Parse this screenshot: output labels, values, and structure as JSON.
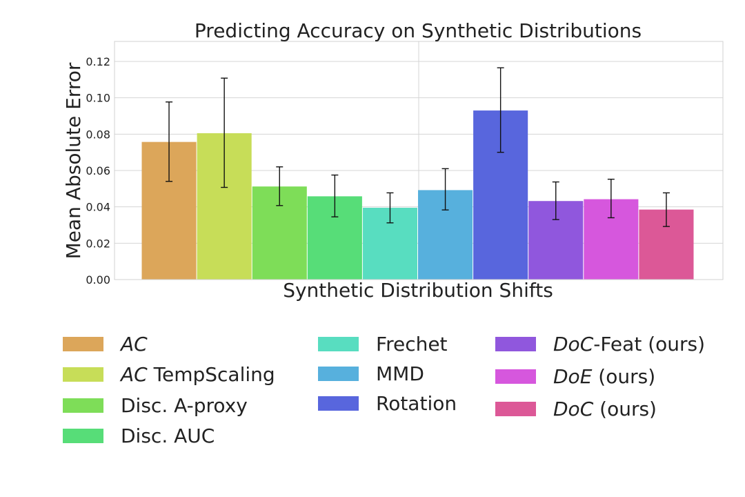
{
  "chart_data": {
    "type": "bar",
    "title": "Predicting Accuracy on Synthetic Distributions",
    "xlabel": "Synthetic Distribution Shifts",
    "ylabel": "Mean Absolute Error",
    "ylim": [
      0,
      0.131
    ],
    "yticks": [
      "0.00",
      "0.02",
      "0.04",
      "0.06",
      "0.08",
      "0.10",
      "0.12"
    ],
    "ytick_values": [
      0,
      0.02,
      0.04,
      0.06,
      0.08,
      0.1,
      0.12
    ],
    "grid": true,
    "legend_position": "bottom",
    "series": [
      {
        "name": "AC",
        "italic": "AC",
        "rest": "",
        "value": 0.0757,
        "err_low": 0.054,
        "err_high": 0.0977,
        "color": "#dca65a"
      },
      {
        "name": "AC TempScaling",
        "italic": "AC",
        "rest": " TempScaling",
        "value": 0.0805,
        "err_low": 0.0507,
        "err_high": 0.1108,
        "color": "#c7dd58"
      },
      {
        "name": "Disc. A-proxy",
        "italic": "",
        "rest": "Disc. A-proxy",
        "value": 0.0512,
        "err_low": 0.0407,
        "err_high": 0.062,
        "color": "#7edd58"
      },
      {
        "name": "Disc. AUC",
        "italic": "",
        "rest": "Disc. AUC",
        "value": 0.0458,
        "err_low": 0.0345,
        "err_high": 0.0575,
        "color": "#57dd78"
      },
      {
        "name": "Frechet",
        "italic": "",
        "rest": "Frechet",
        "value": 0.0395,
        "err_low": 0.0312,
        "err_high": 0.0477,
        "color": "#58ddc0"
      },
      {
        "name": "MMD",
        "italic": "",
        "rest": "MMD",
        "value": 0.0492,
        "err_low": 0.0383,
        "err_high": 0.061,
        "color": "#57b0dd"
      },
      {
        "name": "Rotation",
        "italic": "",
        "rest": "Rotation",
        "value": 0.093,
        "err_low": 0.07,
        "err_high": 0.1165,
        "color": "#5866dd"
      },
      {
        "name": "DoC-Feat (ours)",
        "italic": "DoC",
        "rest": "-Feat (ours)",
        "value": 0.0432,
        "err_low": 0.033,
        "err_high": 0.0537,
        "color": "#9057dd"
      },
      {
        "name": "DoE (ours)",
        "italic": "DoE",
        "rest": " (ours)",
        "value": 0.0442,
        "err_low": 0.034,
        "err_high": 0.0552,
        "color": "#d657dd"
      },
      {
        "name": "DoC (ours)",
        "italic": "DoC",
        "rest": " (ours)",
        "value": 0.0385,
        "err_low": 0.0292,
        "err_high": 0.0477,
        "color": "#dc5897"
      }
    ]
  }
}
